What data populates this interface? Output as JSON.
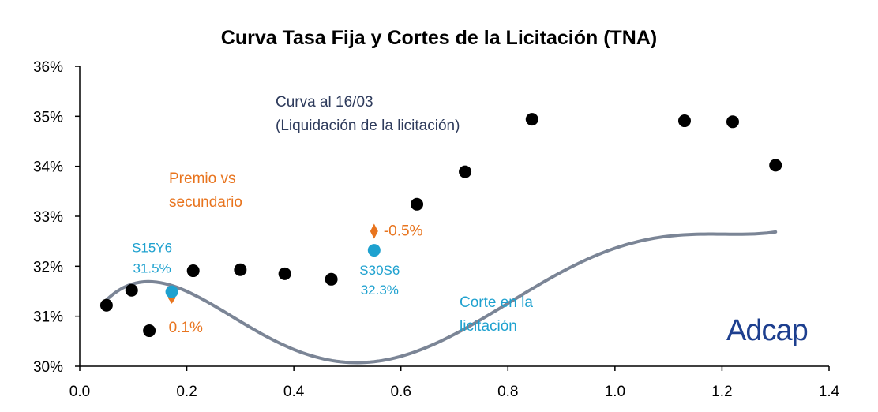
{
  "chart_data": {
    "type": "scatter",
    "title": "Curva Tasa Fija y Cortes de la Licitación (TNA)",
    "xlabel": "",
    "ylabel": "",
    "xlim": [
      0.0,
      1.4
    ],
    "ylim": [
      30,
      36
    ],
    "x_ticks": [
      "0.0",
      "0.2",
      "0.4",
      "0.6",
      "0.8",
      "1.0",
      "1.2",
      "1.4"
    ],
    "x_tick_values": [
      0.0,
      0.2,
      0.4,
      0.6,
      0.8,
      1.0,
      1.2,
      1.4
    ],
    "y_ticks": [
      "30%",
      "31%",
      "32%",
      "33%",
      "34%",
      "35%",
      "36%"
    ],
    "y_tick_values": [
      30,
      31,
      32,
      33,
      34,
      35,
      36
    ],
    "grid": false,
    "series": [
      {
        "name": "Secundario",
        "color": "#000000",
        "points": [
          {
            "x": 0.05,
            "y": 31.22
          },
          {
            "x": 0.097,
            "y": 31.52
          },
          {
            "x": 0.13,
            "y": 30.71
          },
          {
            "x": 0.212,
            "y": 31.91
          },
          {
            "x": 0.3,
            "y": 31.93
          },
          {
            "x": 0.383,
            "y": 31.85
          },
          {
            "x": 0.47,
            "y": 31.74
          },
          {
            "x": 0.63,
            "y": 33.24
          },
          {
            "x": 0.72,
            "y": 33.89
          },
          {
            "x": 0.845,
            "y": 34.94
          },
          {
            "x": 1.13,
            "y": 34.91
          },
          {
            "x": 1.22,
            "y": 34.89
          },
          {
            "x": 1.3,
            "y": 34.02
          }
        ]
      },
      {
        "name": "Corte en la licitación",
        "color": "#1ea1cf",
        "points": [
          {
            "x": 0.172,
            "y": 31.49,
            "label": "S15Y6",
            "value_label": "31.5%"
          },
          {
            "x": 0.55,
            "y": 32.32,
            "label": "S30S6",
            "value_label": "32.3%"
          }
        ]
      },
      {
        "name": "Curva al 16/03",
        "type": "line",
        "color": "#7b8596",
        "polynomial_coefficients": [
          30.5715,
          20.3535,
          -115.6935,
          215.9924,
          -161.0302,
          42.1663
        ],
        "x_range": [
          0.05,
          1.3
        ]
      },
      {
        "name": "Premio vs secundario",
        "color": "#e8741e",
        "markers": [
          {
            "x": 0.172,
            "y_low": 31.25,
            "y_high": 31.49,
            "label": "0.1%"
          },
          {
            "x": 0.55,
            "y_low": 32.55,
            "y_high": 32.85,
            "label": "-0.5%"
          }
        ]
      }
    ],
    "annotations": {
      "curve_label_line1": "Curva al 16/03",
      "curve_label_line2": "(Liquidación de la licitación)",
      "premio_line1": "Premio vs",
      "premio_line2": "secundario",
      "corte_line1": "Corte en la",
      "corte_line2": "licitación"
    },
    "logo_text": "Adcap"
  }
}
